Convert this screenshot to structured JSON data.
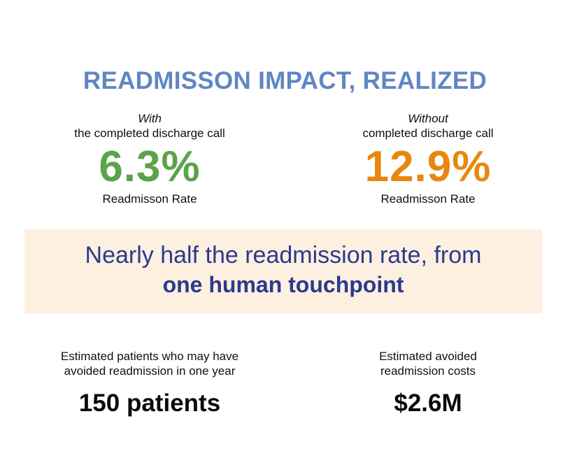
{
  "title": "READMISSON IMPACT, REALIZED",
  "with": {
    "emphasis": "With",
    "condition": "the completed discharge call",
    "rate": "6.3%",
    "rate_label": "Readmisson Rate",
    "color": "#5aa34a"
  },
  "without": {
    "emphasis": "Without",
    "condition": "completed discharge call",
    "rate": "12.9%",
    "rate_label": "Readmisson Rate",
    "color": "#e8870f"
  },
  "banner": {
    "line1": "Nearly half the readmission rate, from",
    "line2": "one human touchpoint",
    "background": "#fdf0e1",
    "text_color": "#2b3a8c"
  },
  "stats": {
    "patients": {
      "label_line1": "Estimated patients who may have",
      "label_line2": "avoided readmission in one year",
      "value": "150 patients"
    },
    "costs": {
      "label_line1": "Estimated avoided",
      "label_line2": "readmission costs",
      "value": "$2.6M"
    }
  },
  "accent_color": "#6086c4"
}
